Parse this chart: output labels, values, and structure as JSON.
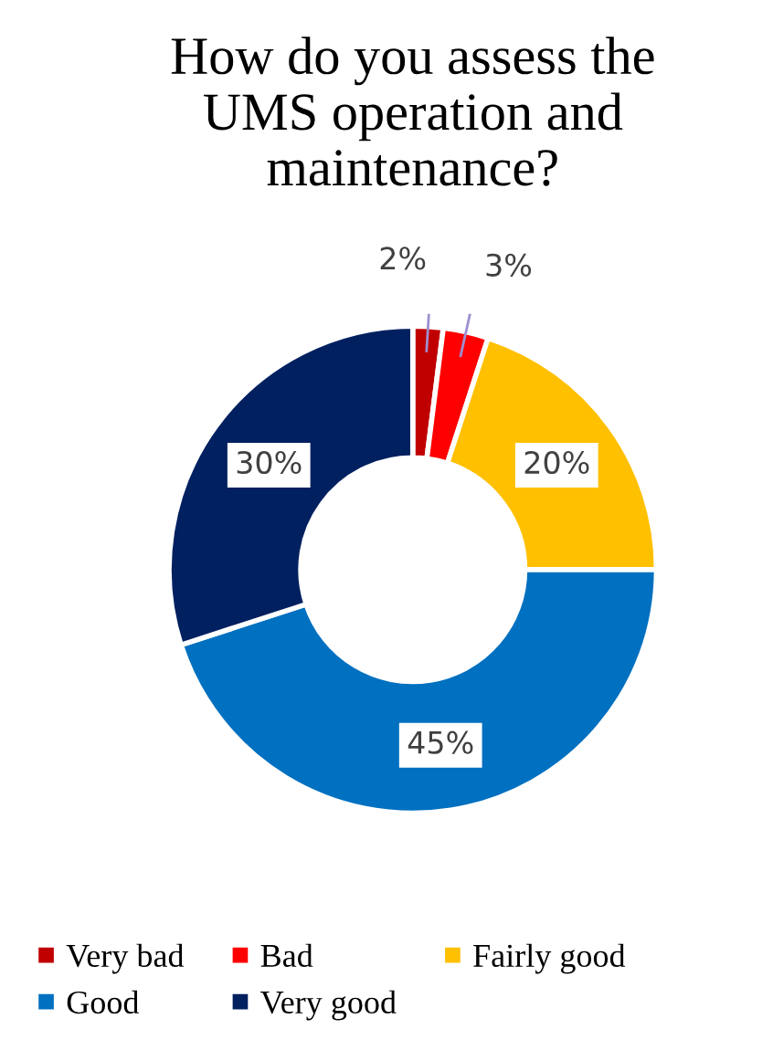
{
  "chart_data": {
    "type": "donut",
    "title": "How do you assess the UMS operation and maintenance?",
    "categories": [
      "Very bad",
      "Bad",
      "Fairly good",
      "Good",
      "Very good"
    ],
    "values": [
      2,
      3,
      20,
      45,
      30
    ],
    "colors": [
      "#c00000",
      "#ff0000",
      "#ffc000",
      "#0070c0",
      "#002060"
    ],
    "value_labels": [
      "2%",
      "3%",
      "20%",
      "45%",
      "30%"
    ],
    "legend": "bottom"
  }
}
